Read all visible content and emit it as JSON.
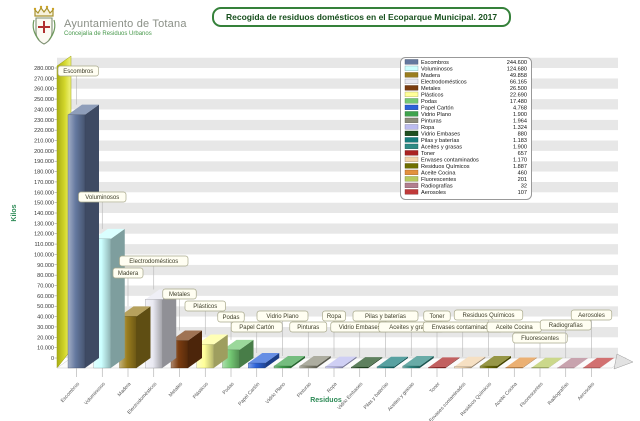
{
  "header": {
    "org": "Ayuntamiento de Totana",
    "dept": "Concejalía de Residuos Urbanos",
    "logo": "totana-crest"
  },
  "title": "Recogida de residuos domésticos en el Ecoparque Municipal. 2017",
  "accent_colors": {
    "title_border_green": "#35813a",
    "axis_title_green": "#2e8b57",
    "left_wall_yellow": "#d3d72c"
  },
  "chart_data": {
    "type": "bar",
    "title": "Recogida de residuos domésticos en el Ecoparque Municipal. 2017",
    "xlabel": "Residuos",
    "ylabel": "Kilos",
    "ylim": [
      0,
      280000
    ],
    "ytick_step": 10000,
    "grid": "horizontal-bands",
    "legend_position": "top-right",
    "style": "3d-bars-with-callout-labels",
    "categories": [
      "Escombros",
      "Voluminosos",
      "Madera",
      "Electrodomésticos",
      "Metales",
      "Plásticos",
      "Podas",
      "Papel Cartón",
      "Vidrio Plano",
      "Pinturas",
      "Ropa",
      "Vidrio Embases",
      "Pilas y baterías",
      "Aceites y grasas",
      "Toner",
      "Envases contaminados",
      "Residuos Químicos",
      "Aceite Cocina",
      "Fluorescentes",
      "Radiografías",
      "Aerosoles"
    ],
    "values": [
      244600,
      124680,
      49858,
      66165,
      26500,
      22690,
      17480,
      4768,
      1900,
      1964,
      1324,
      880,
      1183,
      1900,
      657,
      1170,
      1887,
      460,
      201,
      32,
      107
    ],
    "colors": [
      "#64789f",
      "#ccffff",
      "#9a7d1e",
      "#e9e9f2",
      "#7a3c10",
      "#ffff99",
      "#74c974",
      "#2b62d9",
      "#3fa34d",
      "#8d8d7b",
      "#bcbcf0",
      "#1f4f1f",
      "#177d7d",
      "#2e8b85",
      "#aa2222",
      "#f2d4ac",
      "#6f6f00",
      "#e3913d",
      "#b7c95e",
      "#b27f8f",
      "#c03a3a"
    ]
  }
}
